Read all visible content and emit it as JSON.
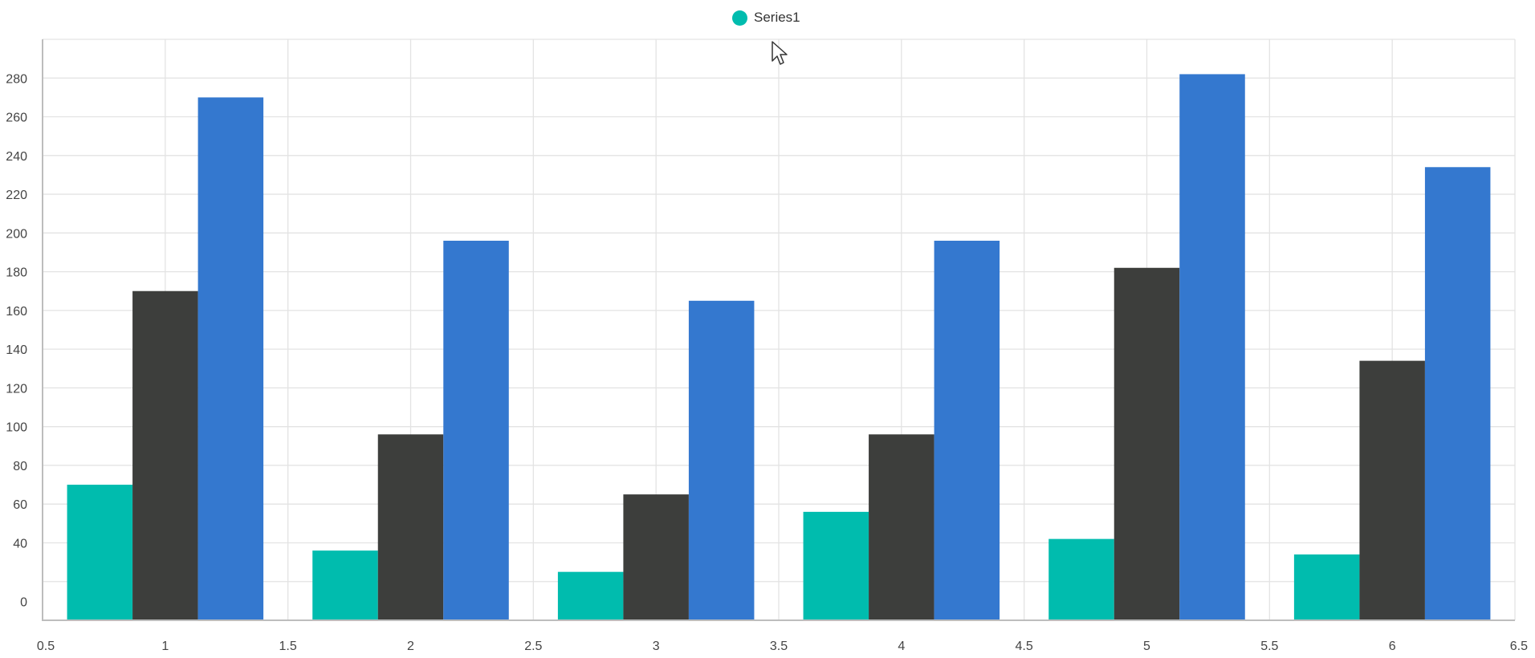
{
  "legend": {
    "label": "Series1",
    "color": "#00BCAE"
  },
  "colors": [
    "#00BCAE",
    "#3D3E3C",
    "#3478CF"
  ],
  "chart_data": {
    "type": "bar",
    "title": "",
    "xlabel": "",
    "ylabel": "",
    "categories": [
      1,
      2,
      3,
      4,
      5,
      6
    ],
    "series": [
      {
        "name": "Series1",
        "values": [
          70,
          36,
          25,
          56,
          42,
          34
        ]
      },
      {
        "values": [
          170,
          96,
          65,
          96,
          182,
          134
        ]
      },
      {
        "values": [
          270,
          196,
          165,
          196,
          282,
          234
        ]
      }
    ],
    "xlim": [
      0.5,
      6.5
    ],
    "ylim": [
      0,
      300
    ],
    "xticks": [
      "0.5",
      "1",
      "1.5",
      "2",
      "2.5",
      "3",
      "3.5",
      "4",
      "4.5",
      "5",
      "5.5",
      "6",
      "6.5"
    ],
    "yticks": [
      "0",
      "40",
      "60",
      "80",
      "100",
      "120",
      "140",
      "160",
      "180",
      "200",
      "220",
      "240",
      "260",
      "280"
    ],
    "grid": true,
    "legend_position": "top-center"
  }
}
